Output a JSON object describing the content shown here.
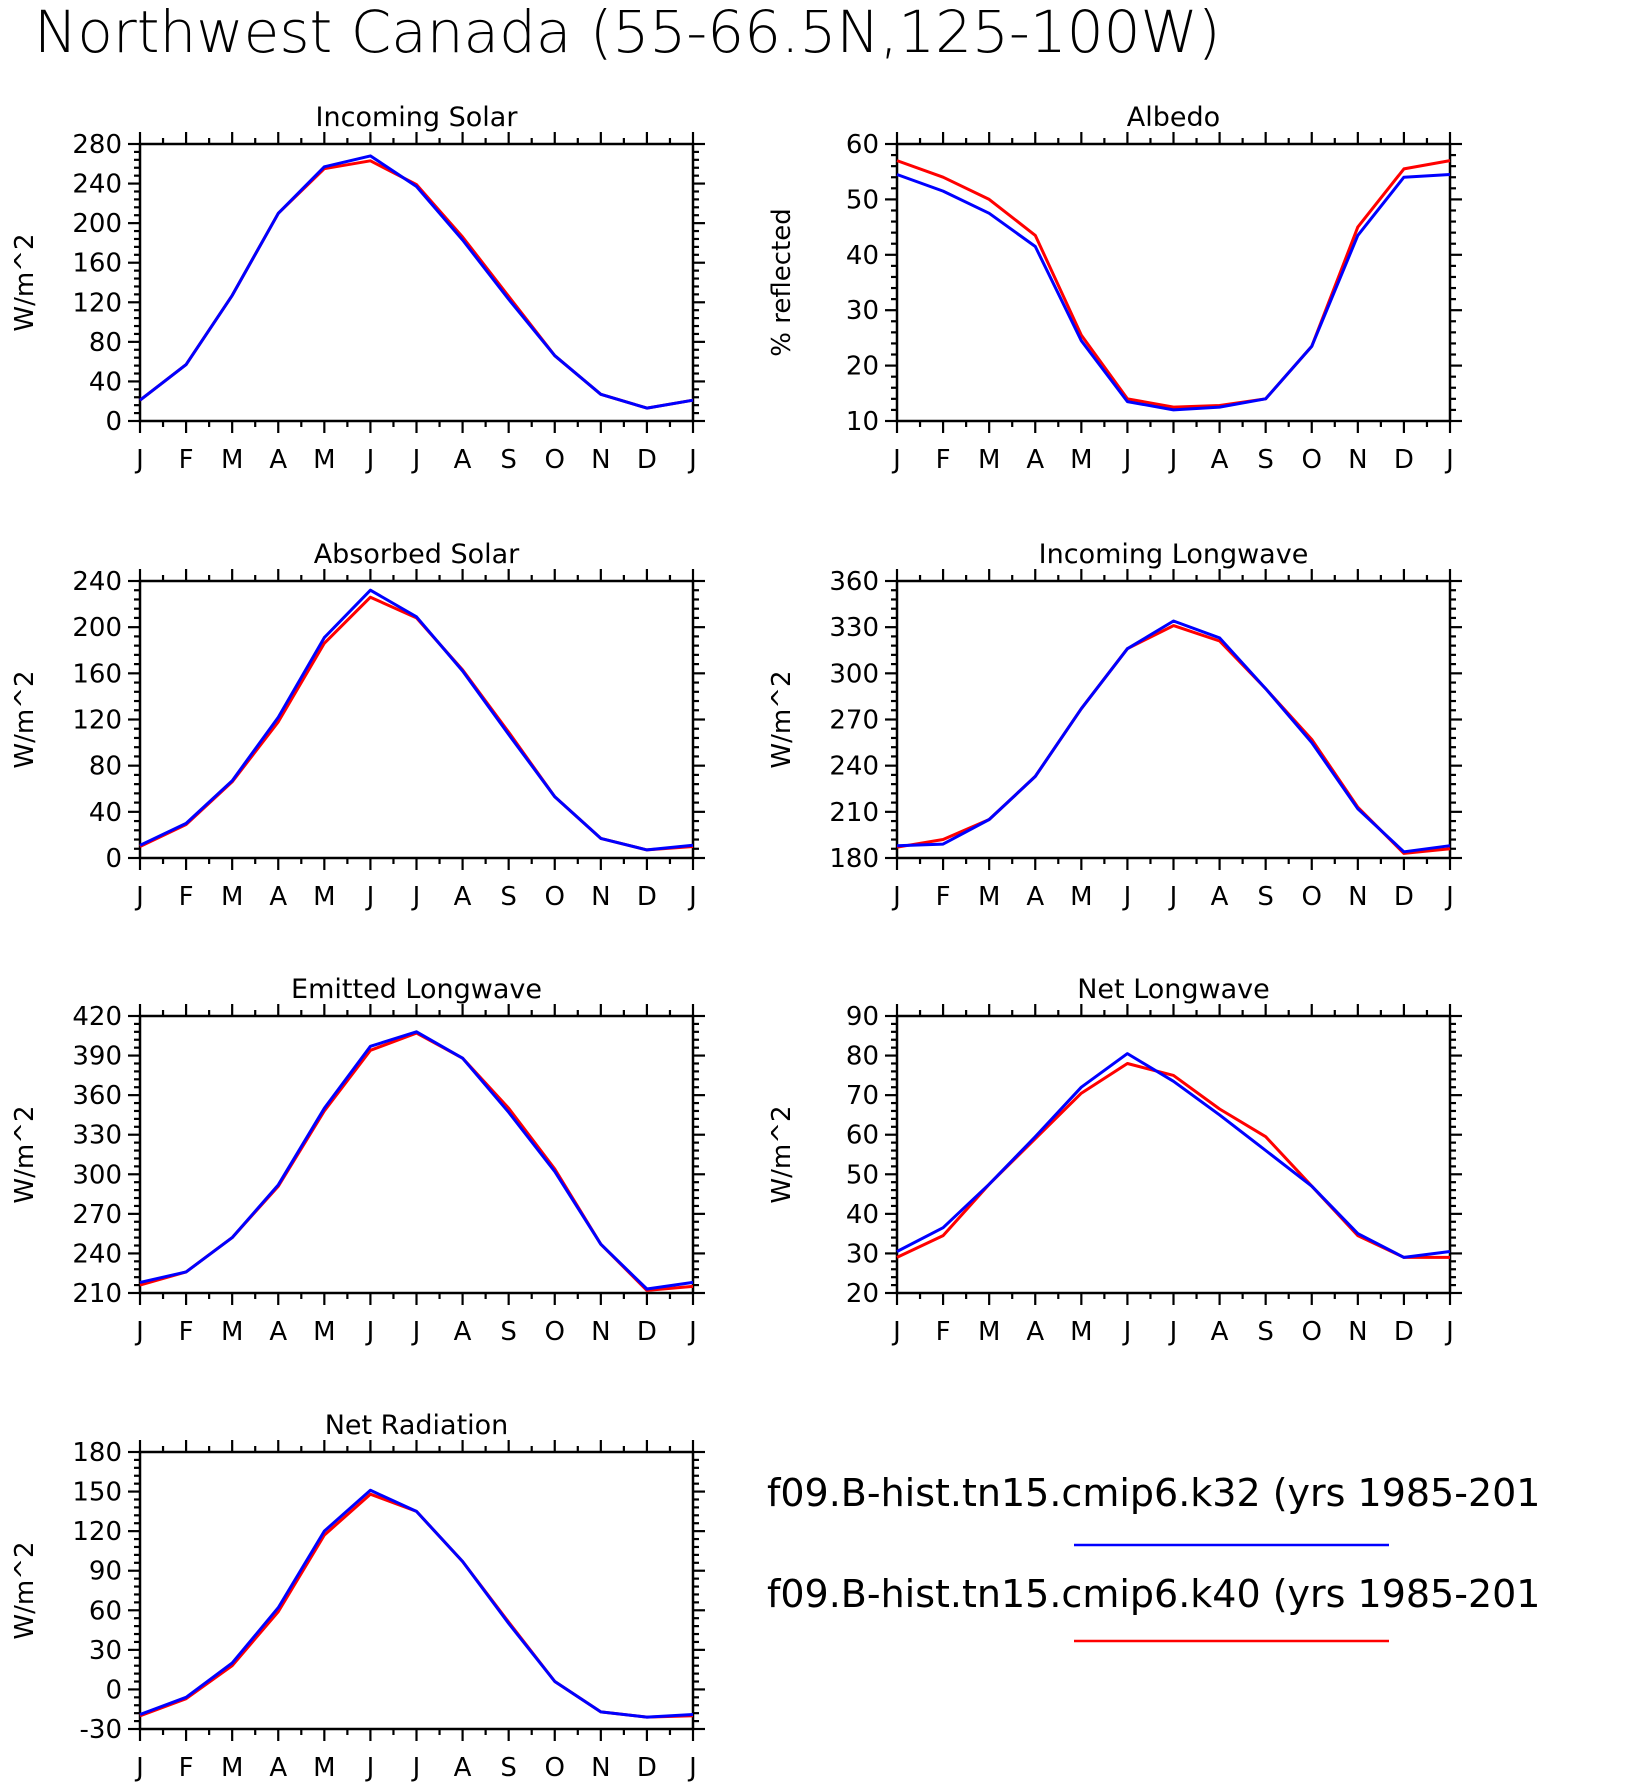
{
  "title": "Northwest Canada (55-66.5N,125-100W)",
  "months": [
    "J",
    "F",
    "M",
    "A",
    "M",
    "J",
    "J",
    "A",
    "S",
    "O",
    "N",
    "D",
    "J"
  ],
  "legend": [
    {
      "label": "f09.B-hist.tn15.cmip6.k32 (yrs 1985-201",
      "color": "#0000ff"
    },
    {
      "label": "f09.B-hist.tn15.cmip6.k40 (yrs 1985-201",
      "color": "#ff0000"
    }
  ],
  "chart_data": [
    {
      "type": "line",
      "title": "Incoming Solar",
      "ylabel": "W/m^2",
      "ylim": [
        0,
        280
      ],
      "yticks": [
        0,
        40,
        80,
        120,
        160,
        200,
        240,
        280
      ],
      "categories": [
        "J",
        "F",
        "M",
        "A",
        "M",
        "J",
        "J",
        "A",
        "S",
        "O",
        "N",
        "D",
        "J"
      ],
      "series": [
        {
          "color": "#0000ff",
          "values": [
            21,
            57,
            127,
            210,
            257,
            268,
            237,
            183,
            123,
            66,
            27,
            13,
            21
          ]
        },
        {
          "color": "#ff0000",
          "values": [
            21,
            57,
            127,
            210,
            255,
            263,
            239,
            186,
            126,
            66,
            27,
            13,
            21
          ]
        }
      ]
    },
    {
      "type": "line",
      "title": "Albedo",
      "ylabel": "% reflected",
      "ylim": [
        10,
        60
      ],
      "yticks": [
        10,
        20,
        30,
        40,
        50,
        60
      ],
      "categories": [
        "J",
        "F",
        "M",
        "A",
        "M",
        "J",
        "J",
        "A",
        "S",
        "O",
        "N",
        "D",
        "J"
      ],
      "series": [
        {
          "color": "#0000ff",
          "values": [
            54.5,
            51.5,
            47.5,
            41.5,
            24.5,
            13.5,
            12.0,
            12.5,
            14.0,
            23.5,
            43.5,
            54.0,
            54.5
          ]
        },
        {
          "color": "#ff0000",
          "values": [
            57.0,
            54.0,
            50.0,
            43.5,
            25.5,
            14.0,
            12.5,
            12.8,
            14.0,
            23.5,
            45.0,
            55.5,
            57.0
          ]
        }
      ]
    },
    {
      "type": "line",
      "title": "Absorbed Solar",
      "ylabel": "W/m^2",
      "ylim": [
        0,
        240
      ],
      "yticks": [
        0,
        40,
        80,
        120,
        160,
        200,
        240
      ],
      "categories": [
        "J",
        "F",
        "M",
        "A",
        "M",
        "J",
        "J",
        "A",
        "S",
        "O",
        "N",
        "D",
        "J"
      ],
      "series": [
        {
          "color": "#0000ff",
          "values": [
            11,
            30,
            67,
            122,
            191,
            232,
            209,
            162,
            107,
            53,
            17,
            7,
            11
          ]
        },
        {
          "color": "#ff0000",
          "values": [
            10,
            29,
            66,
            118,
            186,
            226,
            208,
            163,
            109,
            53,
            17,
            7,
            10
          ]
        }
      ]
    },
    {
      "type": "line",
      "title": "Incoming Longwave",
      "ylabel": "W/m^2",
      "ylim": [
        180,
        360
      ],
      "yticks": [
        180,
        210,
        240,
        270,
        300,
        330,
        360
      ],
      "categories": [
        "J",
        "F",
        "M",
        "A",
        "M",
        "J",
        "J",
        "A",
        "S",
        "O",
        "N",
        "D",
        "J"
      ],
      "series": [
        {
          "color": "#0000ff",
          "values": [
            188,
            189,
            205,
            233,
            277,
            316,
            334,
            323,
            290,
            255,
            212,
            184,
            188
          ]
        },
        {
          "color": "#ff0000",
          "values": [
            187,
            192,
            205,
            233,
            277,
            316,
            331,
            321,
            290,
            257,
            213,
            183,
            186
          ]
        }
      ]
    },
    {
      "type": "line",
      "title": "Emitted Longwave",
      "ylabel": "W/m^2",
      "ylim": [
        210,
        420
      ],
      "yticks": [
        210,
        240,
        270,
        300,
        330,
        360,
        390,
        420
      ],
      "categories": [
        "J",
        "F",
        "M",
        "A",
        "M",
        "J",
        "J",
        "A",
        "S",
        "O",
        "N",
        "D",
        "J"
      ],
      "series": [
        {
          "color": "#0000ff",
          "values": [
            218,
            226,
            252,
            292,
            350,
            397,
            408,
            388,
            347,
            302,
            247,
            213,
            218
          ]
        },
        {
          "color": "#ff0000",
          "values": [
            216,
            226,
            252,
            291,
            348,
            394,
            407,
            388,
            350,
            304,
            247,
            212,
            215
          ]
        }
      ]
    },
    {
      "type": "line",
      "title": "Net Longwave",
      "ylabel": "W/m^2",
      "ylim": [
        20,
        90
      ],
      "yticks": [
        20,
        30,
        40,
        50,
        60,
        70,
        80,
        90
      ],
      "categories": [
        "J",
        "F",
        "M",
        "A",
        "M",
        "J",
        "J",
        "A",
        "S",
        "O",
        "N",
        "D",
        "J"
      ],
      "series": [
        {
          "color": "#0000ff",
          "values": [
            30.5,
            36.5,
            47.5,
            59.5,
            72.0,
            80.5,
            73.5,
            65.0,
            56.0,
            47.0,
            35.0,
            29.0,
            30.5
          ]
        },
        {
          "color": "#ff0000",
          "values": [
            29.0,
            34.5,
            47.5,
            59.0,
            70.5,
            78.0,
            75.0,
            66.5,
            59.5,
            47.0,
            34.5,
            29.0,
            29.0
          ]
        }
      ]
    },
    {
      "type": "line",
      "title": "Net Radiation",
      "ylabel": "W/m^2",
      "ylim": [
        -30,
        180
      ],
      "yticks": [
        -30,
        0,
        30,
        60,
        90,
        120,
        150,
        180
      ],
      "categories": [
        "J",
        "F",
        "M",
        "A",
        "M",
        "J",
        "J",
        "A",
        "S",
        "O",
        "N",
        "D",
        "J"
      ],
      "series": [
        {
          "color": "#0000ff",
          "values": [
            -19,
            -6,
            20,
            62,
            120,
            151,
            135,
            97,
            50,
            6,
            -17,
            -21,
            -19
          ]
        },
        {
          "color": "#ff0000",
          "values": [
            -20,
            -7,
            18,
            59,
            117,
            148,
            135,
            97,
            51,
            6,
            -17,
            -21,
            -20
          ]
        }
      ]
    }
  ]
}
